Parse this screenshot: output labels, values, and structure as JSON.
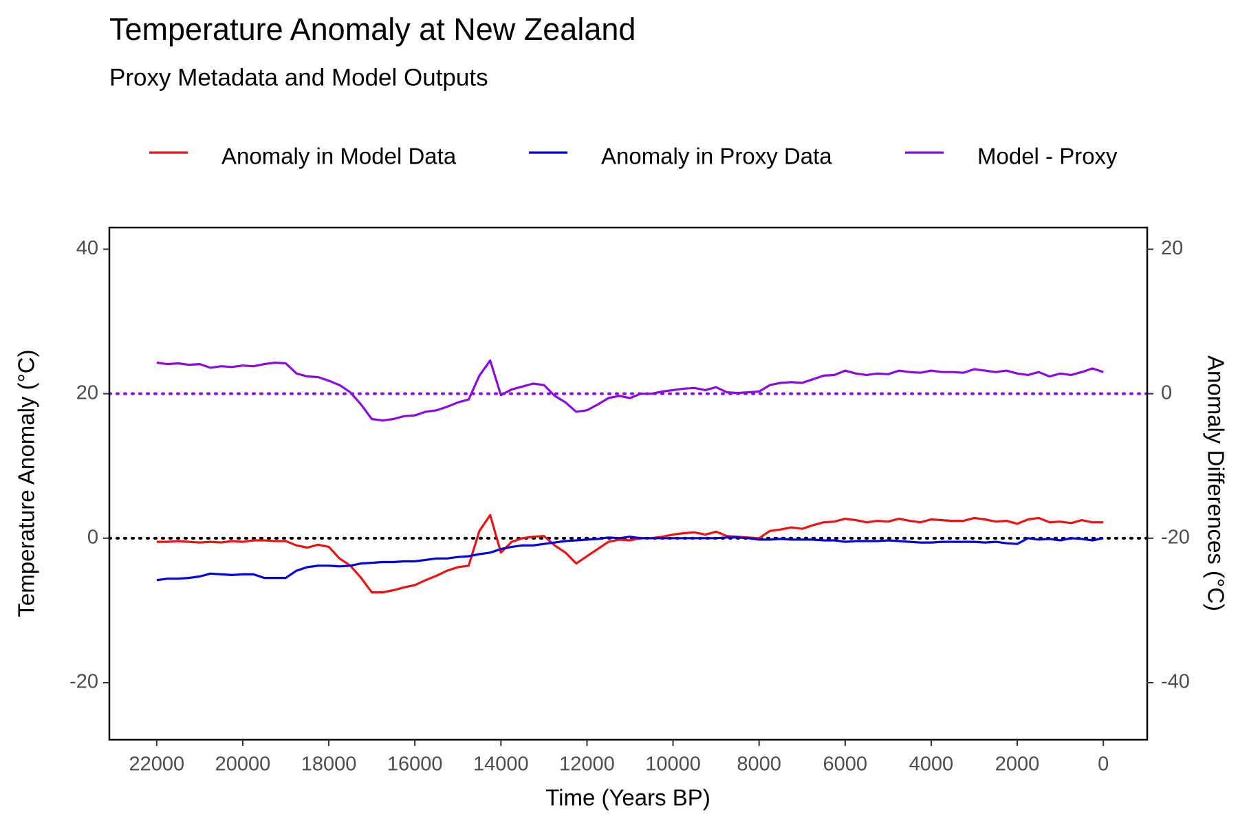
{
  "chart_data": {
    "type": "line",
    "title": "Temperature Anomaly at New Zealand",
    "subtitle": "Proxy Metadata and Model Outputs",
    "x_label": "Time (Years BP)",
    "y_label": "Temperature Anomaly (°C)",
    "y2_label": "Anomaly Differences (°C)",
    "xlim": [
      23100,
      -1020
    ],
    "xticks": [
      22000,
      20000,
      18000,
      16000,
      14000,
      12000,
      10000,
      8000,
      6000,
      4000,
      2000,
      0
    ],
    "ylim": [
      -27.9,
      43
    ],
    "yticks": [
      -20,
      0,
      20,
      40
    ],
    "y2lim": [
      -47.9,
      23
    ],
    "y2ticks": [
      -40,
      -20,
      0,
      20
    ],
    "legend": "top",
    "grid": false,
    "reference_lines": [
      {
        "value": 0,
        "axis": "y",
        "color": "#000000"
      },
      {
        "value": 0,
        "axis": "y2",
        "color": "#8a0be0"
      }
    ],
    "x": [
      22000,
      21750,
      21500,
      21250,
      21000,
      20750,
      20500,
      20250,
      20000,
      19750,
      19500,
      19250,
      19000,
      18750,
      18500,
      18250,
      18000,
      17750,
      17500,
      17250,
      17000,
      16750,
      16500,
      16250,
      16000,
      15750,
      15500,
      15250,
      15000,
      14750,
      14500,
      14250,
      14000,
      13750,
      13500,
      13250,
      13000,
      12750,
      12500,
      12250,
      12000,
      11750,
      11500,
      11250,
      11000,
      10750,
      10500,
      10250,
      10000,
      9750,
      9500,
      9250,
      9000,
      8750,
      8500,
      8250,
      8000,
      7750,
      7500,
      7250,
      7000,
      6750,
      6500,
      6250,
      6000,
      5750,
      5500,
      5250,
      5000,
      4750,
      4500,
      4250,
      4000,
      3750,
      3500,
      3250,
      3000,
      2750,
      2500,
      2250,
      2000,
      1750,
      1500,
      1250,
      1000,
      750,
      500,
      250,
      0
    ],
    "series": [
      {
        "name": "Anomaly in Model Data",
        "color": "#ee1111",
        "axis": "y",
        "values": [
          -0.5,
          -0.5,
          -0.4,
          -0.5,
          -0.6,
          -0.5,
          -0.6,
          -0.4,
          -0.5,
          -0.3,
          -0.3,
          -0.4,
          -0.4,
          -1.0,
          -1.3,
          -0.9,
          -1.2,
          -2.8,
          -3.8,
          -5.5,
          -7.5,
          -7.5,
          -7.2,
          -6.8,
          -6.5,
          -5.8,
          -5.2,
          -4.5,
          -4.0,
          -3.8,
          1.0,
          3.2,
          -2.0,
          -0.5,
          0.0,
          0.2,
          0.3,
          -1.0,
          -2.0,
          -3.5,
          -2.5,
          -1.5,
          -0.5,
          -0.2,
          -0.3,
          0.0,
          0.0,
          0.2,
          0.5,
          0.7,
          0.8,
          0.5,
          0.9,
          0.3,
          0.2,
          0.1,
          0.0,
          1.0,
          1.2,
          1.5,
          1.3,
          1.8,
          2.2,
          2.3,
          2.7,
          2.5,
          2.2,
          2.4,
          2.3,
          2.7,
          2.4,
          2.2,
          2.6,
          2.5,
          2.4,
          2.4,
          2.8,
          2.6,
          2.3,
          2.4,
          2.0,
          2.6,
          2.8,
          2.2,
          2.3,
          2.1,
          2.5,
          2.2,
          2.2
        ]
      },
      {
        "name": "Anomaly in Proxy Data",
        "color": "#0000e0",
        "axis": "y",
        "values": [
          -5.8,
          -5.6,
          -5.6,
          -5.5,
          -5.3,
          -4.9,
          -5.0,
          -5.1,
          -5.0,
          -5.0,
          -5.5,
          -5.5,
          -5.5,
          -4.5,
          -4.0,
          -3.8,
          -3.8,
          -3.9,
          -3.8,
          -3.5,
          -3.4,
          -3.3,
          -3.3,
          -3.2,
          -3.2,
          -3.0,
          -2.8,
          -2.8,
          -2.6,
          -2.5,
          -2.2,
          -2.0,
          -1.5,
          -1.2,
          -1.0,
          -1.0,
          -0.8,
          -0.6,
          -0.4,
          -0.3,
          -0.2,
          -0.1,
          0.1,
          0.0,
          0.2,
          0.0,
          0.0,
          0.0,
          0.0,
          0.0,
          0.0,
          0.0,
          0.0,
          0.1,
          0.1,
          0.0,
          -0.2,
          -0.2,
          -0.1,
          -0.2,
          -0.2,
          -0.2,
          -0.3,
          -0.3,
          -0.5,
          -0.4,
          -0.4,
          -0.4,
          -0.3,
          -0.4,
          -0.5,
          -0.6,
          -0.6,
          -0.5,
          -0.5,
          -0.5,
          -0.5,
          -0.6,
          -0.5,
          -0.7,
          -0.8,
          0.0,
          -0.2,
          -0.1,
          -0.3,
          0.0,
          -0.1,
          -0.3,
          0.0
        ]
      },
      {
        "name": "Model - Proxy",
        "color": "#8a0be0",
        "axis": "y2",
        "values": [
          4.3,
          4.1,
          4.2,
          4.0,
          4.1,
          3.6,
          3.8,
          3.7,
          3.9,
          3.8,
          4.1,
          4.3,
          4.2,
          2.8,
          2.4,
          2.3,
          1.8,
          1.2,
          0.2,
          -1.5,
          -3.5,
          -3.7,
          -3.5,
          -3.1,
          -3.0,
          -2.5,
          -2.3,
          -1.8,
          -1.2,
          -0.8,
          2.5,
          4.6,
          -0.2,
          0.6,
          1.0,
          1.4,
          1.2,
          -0.3,
          -1.2,
          -2.5,
          -2.3,
          -1.5,
          -0.6,
          -0.3,
          -0.6,
          0.0,
          0.0,
          0.3,
          0.5,
          0.7,
          0.8,
          0.5,
          0.9,
          0.2,
          0.1,
          0.2,
          0.3,
          1.2,
          1.5,
          1.6,
          1.5,
          2.0,
          2.5,
          2.6,
          3.2,
          2.8,
          2.6,
          2.8,
          2.7,
          3.2,
          3.0,
          2.9,
          3.2,
          3.0,
          3.0,
          2.9,
          3.4,
          3.2,
          3.0,
          3.2,
          2.8,
          2.6,
          3.0,
          2.4,
          2.8,
          2.6,
          3.0,
          3.5,
          3.0
        ]
      }
    ]
  }
}
